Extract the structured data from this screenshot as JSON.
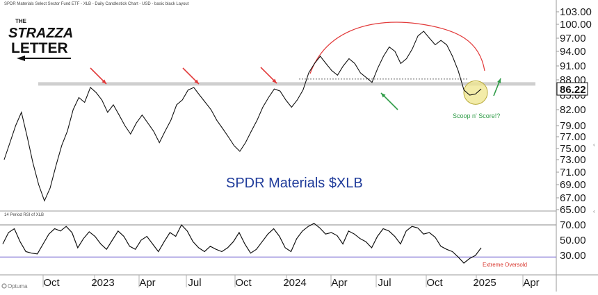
{
  "header": {
    "chart_title": "SPDR Materials Select Sector Fund ETF - XLB - Daily Candlestick Chart - USD - basic black Layout",
    "indicator_title": "14 Period RSI of XLB"
  },
  "logo": {
    "line1": "THE",
    "line2": "STRAZZA",
    "line3": "LETTER"
  },
  "watermark": "Optuma",
  "colors": {
    "price": "#111111",
    "rsi": "#111111",
    "resistance": "#cfcfcf",
    "arc": "#e23b3b",
    "red_arrow": "#e23b3b",
    "green_arrow": "#2e9b46",
    "circle_fill": "#efe68c",
    "circle_stroke": "#b8aa3a",
    "oversold_line": "#6a5acd",
    "label_blue": "#1f3b9a",
    "annot_green": "#2e9b46",
    "annot_red": "#d8342b"
  },
  "chart_data": [
    {
      "type": "line",
      "title": "SPDR Materials $XLB",
      "x_ticks": [
        "Oct",
        "2023",
        "Apr",
        "Jul",
        "Oct",
        "2024",
        "Apr",
        "Jul",
        "Oct",
        "2025",
        "Apr"
      ],
      "y_ticks": [
        "65.00",
        "67.00",
        "69.00",
        "71.00",
        "73.00",
        "75.00",
        "77.00",
        "79.00",
        "82.00",
        "85.00",
        "88.00",
        "91.00",
        "94.00",
        "97.00",
        "100.00",
        "103.00"
      ],
      "last_price_label": "86.22",
      "resistance_level": 87.2,
      "annotation_text": "Scoop n' Score!?",
      "series": [
        {
          "values": [
            73,
            76,
            79,
            81.5,
            77,
            72.5,
            69,
            66.5,
            68.5,
            72,
            75.5,
            78,
            82,
            84.5,
            83.5,
            86.5,
            85.5,
            84,
            81.5,
            83,
            81,
            79,
            77.5,
            79.5,
            81,
            79.5,
            78,
            76,
            78,
            80,
            83,
            84,
            86,
            86.5,
            85,
            83.5,
            82,
            80,
            78.5,
            77,
            75.5,
            74.5,
            76,
            78,
            80,
            82.5,
            84.5,
            86.2,
            85.8,
            84,
            82.5,
            84,
            86,
            89.5,
            91.5,
            93,
            91.5,
            90,
            89,
            91,
            92.5,
            91.5,
            89.5,
            88.5,
            87.5,
            90.5,
            93,
            95,
            94,
            91.5,
            92.5,
            94.5,
            97.5,
            98.5,
            97,
            95.5,
            96.5,
            95.5,
            93,
            90,
            86,
            85,
            85.2,
            86.2
          ]
        }
      ]
    },
    {
      "type": "line",
      "title": "14 Period RSI of XLB",
      "y_ticks": [
        "30.00",
        "50.00",
        "70.00"
      ],
      "reference_lines": [
        70,
        28
      ],
      "annotation_text": "Extreme Oversold",
      "series": [
        {
          "values": [
            45,
            60,
            65,
            48,
            35,
            33,
            32,
            45,
            58,
            65,
            62,
            68,
            60,
            40,
            52,
            61,
            55,
            45,
            38,
            50,
            62,
            55,
            42,
            38,
            50,
            55,
            45,
            35,
            48,
            60,
            55,
            70,
            62,
            48,
            40,
            35,
            42,
            38,
            35,
            40,
            48,
            60,
            45,
            33,
            38,
            48,
            58,
            65,
            55,
            40,
            35,
            52,
            62,
            68,
            72,
            66,
            58,
            60,
            56,
            45,
            62,
            58,
            52,
            48,
            40,
            55,
            65,
            62,
            55,
            45,
            62,
            68,
            66,
            58,
            60,
            54,
            42,
            38,
            35,
            28,
            20,
            26,
            30,
            40
          ]
        }
      ]
    }
  ]
}
